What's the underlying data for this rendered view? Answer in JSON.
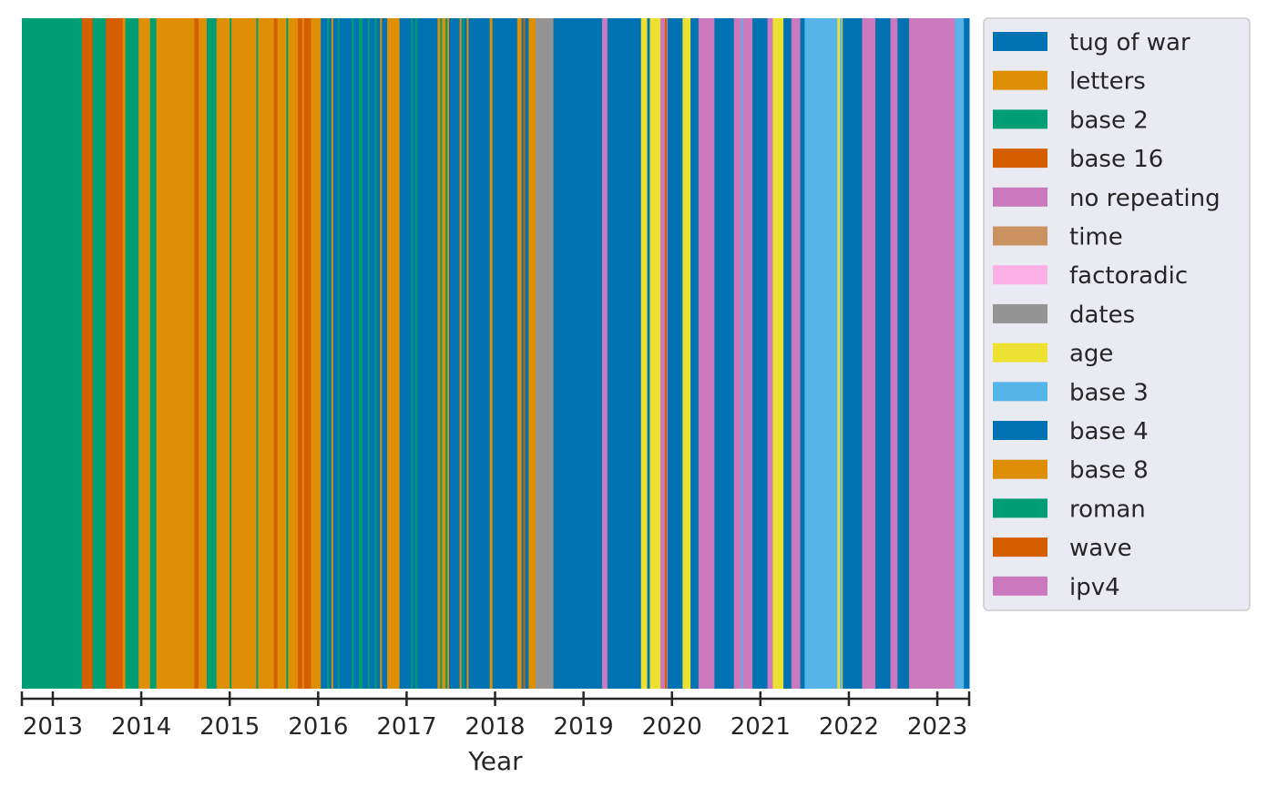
{
  "chart_data": {
    "type": "bar",
    "subtype": "stacked timeline (full-height bands per period)",
    "title": "",
    "xlabel": "Year",
    "ylabel": "",
    "x_ticks": [
      "2013",
      "2014",
      "2015",
      "2016",
      "2017",
      "2018",
      "2019",
      "2020",
      "2021",
      "2022",
      "2023"
    ],
    "xlim": [
      "2012-08",
      "2023-05"
    ],
    "grid": false,
    "background": "#eaeaf2",
    "legend_position": "outside right, top",
    "series": [
      {
        "name": "tug of war",
        "color": "#0173b2"
      },
      {
        "name": "letters",
        "color": "#de8f05"
      },
      {
        "name": "base 2",
        "color": "#029e73"
      },
      {
        "name": "base 16",
        "color": "#d55e00"
      },
      {
        "name": "no repeating",
        "color": "#cc78bc"
      },
      {
        "name": "time",
        "color": "#ca9161"
      },
      {
        "name": "factoradic",
        "color": "#fbafe4"
      },
      {
        "name": "dates",
        "color": "#949494"
      },
      {
        "name": "age",
        "color": "#ece133"
      },
      {
        "name": "base 3",
        "color": "#56b4e9"
      },
      {
        "name": "base 4",
        "color": "#0173b2"
      },
      {
        "name": "base 8",
        "color": "#de8f05"
      },
      {
        "name": "roman",
        "color": "#029e73"
      },
      {
        "name": "wave",
        "color": "#d55e00"
      },
      {
        "name": "ipv4",
        "color": "#cc78bc"
      }
    ],
    "periods": [
      {
        "start": 2012.65,
        "end": 2013.33,
        "series": "base 2"
      },
      {
        "start": 2013.33,
        "end": 2013.45,
        "series": "base 16"
      },
      {
        "start": 2013.45,
        "end": 2013.6,
        "series": "base 2"
      },
      {
        "start": 2013.6,
        "end": 2013.79,
        "series": "base 16"
      },
      {
        "start": 2013.79,
        "end": 2013.83,
        "series": "letters"
      },
      {
        "start": 2013.83,
        "end": 2013.97,
        "series": "base 2"
      },
      {
        "start": 2013.97,
        "end": 2014.1,
        "series": "letters"
      },
      {
        "start": 2014.1,
        "end": 2014.17,
        "series": "base 2"
      },
      {
        "start": 2014.17,
        "end": 2014.6,
        "series": "letters"
      },
      {
        "start": 2014.6,
        "end": 2014.65,
        "series": "base 16"
      },
      {
        "start": 2014.65,
        "end": 2014.74,
        "series": "letters"
      },
      {
        "start": 2014.74,
        "end": 2014.85,
        "series": "base 2"
      },
      {
        "start": 2014.85,
        "end": 2015.0,
        "series": "letters"
      },
      {
        "start": 2015.0,
        "end": 2015.02,
        "series": "base 2"
      },
      {
        "start": 2015.02,
        "end": 2015.5,
        "series": "letters"
      },
      {
        "start": 2015.5,
        "end": 2015.54,
        "series": "base 16"
      },
      {
        "start": 2015.54,
        "end": 2015.64,
        "series": "letters"
      },
      {
        "start": 2015.64,
        "end": 2015.66,
        "series": "base 2"
      },
      {
        "start": 2015.66,
        "end": 2015.77,
        "series": "letters"
      },
      {
        "start": 2015.77,
        "end": 2015.92,
        "series": "base 16"
      },
      {
        "start": 2015.92,
        "end": 2016.03,
        "series": "letters"
      },
      {
        "start": 2016.03,
        "end": 2016.15,
        "series": "tug of war"
      },
      {
        "start": 2016.15,
        "end": 2016.17,
        "series": "letters"
      },
      {
        "start": 2016.17,
        "end": 2016.46,
        "series": "tug of war"
      },
      {
        "start": 2016.46,
        "end": 2016.5,
        "series": "base 2"
      },
      {
        "start": 2016.5,
        "end": 2016.78,
        "series": "tug of war"
      },
      {
        "start": 2016.78,
        "end": 2016.92,
        "series": "letters"
      },
      {
        "start": 2016.92,
        "end": 2017.35,
        "series": "tug of war"
      },
      {
        "start": 2017.35,
        "end": 2017.48,
        "series": "letters"
      },
      {
        "start": 2017.48,
        "end": 2017.7,
        "series": "tug of war"
      },
      {
        "start": 2017.7,
        "end": 2017.94,
        "series": "tug of war"
      },
      {
        "start": 2017.94,
        "end": 2017.97,
        "series": "letters"
      },
      {
        "start": 2017.97,
        "end": 2018.25,
        "series": "tug of war"
      },
      {
        "start": 2018.25,
        "end": 2018.3,
        "series": "letters"
      },
      {
        "start": 2018.3,
        "end": 2018.38,
        "series": "tug of war"
      },
      {
        "start": 2018.38,
        "end": 2018.46,
        "series": "letters"
      },
      {
        "start": 2018.46,
        "end": 2018.66,
        "series": "dates"
      },
      {
        "start": 2018.66,
        "end": 2019.21,
        "series": "tug of war"
      },
      {
        "start": 2019.21,
        "end": 2019.27,
        "series": "no repeating"
      },
      {
        "start": 2019.27,
        "end": 2019.65,
        "series": "base 4"
      },
      {
        "start": 2019.65,
        "end": 2019.72,
        "series": "age"
      },
      {
        "start": 2019.72,
        "end": 2019.75,
        "series": "base 4"
      },
      {
        "start": 2019.75,
        "end": 2019.87,
        "series": "age"
      },
      {
        "start": 2019.87,
        "end": 2019.95,
        "series": "no repeating"
      },
      {
        "start": 2019.95,
        "end": 2020.12,
        "series": "base 4"
      },
      {
        "start": 2020.12,
        "end": 2020.21,
        "series": "age"
      },
      {
        "start": 2020.21,
        "end": 2020.3,
        "series": "base 4"
      },
      {
        "start": 2020.3,
        "end": 2020.48,
        "series": "no repeating"
      },
      {
        "start": 2020.48,
        "end": 2020.7,
        "series": "base 4"
      },
      {
        "start": 2020.7,
        "end": 2020.78,
        "series": "no repeating"
      },
      {
        "start": 2020.78,
        "end": 2020.8,
        "series": "base 3"
      },
      {
        "start": 2020.8,
        "end": 2020.91,
        "series": "no repeating"
      },
      {
        "start": 2020.91,
        "end": 2021.08,
        "series": "base 4"
      },
      {
        "start": 2021.08,
        "end": 2021.14,
        "series": "no repeating"
      },
      {
        "start": 2021.14,
        "end": 2021.26,
        "series": "age"
      },
      {
        "start": 2021.26,
        "end": 2021.35,
        "series": "base 4"
      },
      {
        "start": 2021.35,
        "end": 2021.45,
        "series": "no repeating"
      },
      {
        "start": 2021.45,
        "end": 2021.5,
        "series": "base 4"
      },
      {
        "start": 2021.5,
        "end": 2021.87,
        "series": "base 3"
      },
      {
        "start": 2021.87,
        "end": 2021.93,
        "series": "age"
      },
      {
        "start": 2021.93,
        "end": 2022.15,
        "series": "base 4"
      },
      {
        "start": 2022.15,
        "end": 2022.3,
        "series": "no repeating"
      },
      {
        "start": 2022.3,
        "end": 2022.47,
        "series": "base 4"
      },
      {
        "start": 2022.47,
        "end": 2022.55,
        "series": "no repeating"
      },
      {
        "start": 2022.55,
        "end": 2022.68,
        "series": "base 4"
      },
      {
        "start": 2022.68,
        "end": 2023.2,
        "series": "ipv4"
      },
      {
        "start": 2023.2,
        "end": 2023.3,
        "series": "base 3"
      },
      {
        "start": 2023.3,
        "end": 2023.36,
        "series": "tug of war"
      }
    ],
    "thin_stripes": [
      {
        "at": 2013.82,
        "series": "base 2"
      },
      {
        "at": 2014.33,
        "series": "letters"
      },
      {
        "at": 2015.3,
        "series": "base 2"
      },
      {
        "at": 2015.82,
        "series": "letters"
      },
      {
        "at": 2016.1,
        "series": "base 2"
      },
      {
        "at": 2016.22,
        "series": "base 2"
      },
      {
        "at": 2016.38,
        "series": "base 2"
      },
      {
        "at": 2016.56,
        "series": "base 2"
      },
      {
        "at": 2016.64,
        "series": "base 2"
      },
      {
        "at": 2016.7,
        "series": "letters"
      },
      {
        "at": 2017.05,
        "series": "base 2"
      },
      {
        "at": 2017.1,
        "series": "base 2"
      },
      {
        "at": 2017.38,
        "series": "base 2"
      },
      {
        "at": 2017.44,
        "series": "base 2"
      },
      {
        "at": 2017.6,
        "series": "letters"
      },
      {
        "at": 2017.63,
        "series": "base 2"
      },
      {
        "at": 2017.68,
        "series": "letters"
      },
      {
        "at": 2018.32,
        "series": "base 16"
      },
      {
        "at": 2019.31,
        "series": "tug of war"
      },
      {
        "at": 2019.92,
        "series": "base 16"
      },
      {
        "at": 2020.6,
        "series": "tug of war"
      },
      {
        "at": 2021.65,
        "series": "base 3"
      },
      {
        "at": 2021.9,
        "series": "base 3"
      },
      {
        "at": 2022.38,
        "series": "base 4"
      }
    ]
  }
}
